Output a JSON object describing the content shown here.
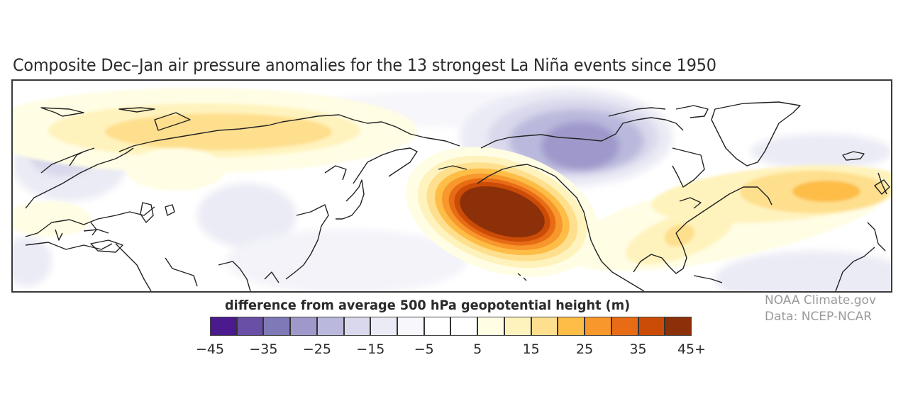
{
  "title": "Composite Dec–Jan air pressure anomalies for the 13 strongest La Niña events since 1950",
  "legend": {
    "title": "difference from average 500 hPa geopotential height (m)",
    "bins": [
      {
        "min": -45,
        "max": -40,
        "color": "#4a1a8e"
      },
      {
        "min": -40,
        "max": -35,
        "color": "#6a4fa6"
      },
      {
        "min": -35,
        "max": -30,
        "color": "#7f79b7"
      },
      {
        "min": -30,
        "max": -25,
        "color": "#9e98cb"
      },
      {
        "min": -25,
        "max": -20,
        "color": "#bab9dd"
      },
      {
        "min": -20,
        "max": -15,
        "color": "#d9d8ec"
      },
      {
        "min": -15,
        "max": -10,
        "color": "#ebebf5"
      },
      {
        "min": -10,
        "max": -5,
        "color": "#f8f8fc"
      },
      {
        "min": -5,
        "max": 0,
        "color": "#ffffff"
      },
      {
        "min": 0,
        "max": 5,
        "color": "#ffffff"
      },
      {
        "min": 5,
        "max": 10,
        "color": "#fffde3"
      },
      {
        "min": 10,
        "max": 15,
        "color": "#fff3bd"
      },
      {
        "min": 15,
        "max": 20,
        "color": "#fedf8e"
      },
      {
        "min": 20,
        "max": 25,
        "color": "#fdbd47"
      },
      {
        "min": 25,
        "max": 30,
        "color": "#f8972b"
      },
      {
        "min": 30,
        "max": 35,
        "color": "#e86b16"
      },
      {
        "min": 35,
        "max": 40,
        "color": "#cb4c07"
      },
      {
        "min": 40,
        "max": 45,
        "color": "#8c300a"
      }
    ],
    "tick_labels": [
      "−45",
      "−35",
      "−25",
      "−15",
      "−5",
      "5",
      "15",
      "25",
      "35",
      "45+"
    ]
  },
  "credits": {
    "line1": "NOAA Climate.gov",
    "line2": "Data: NCEP-NCAR"
  },
  "map": {
    "anomalies": [
      {
        "name": "north-pacific-high",
        "peak_m": 45
      },
      {
        "name": "north-canada-low",
        "peak_m": -25
      },
      {
        "name": "north-atlantic-high",
        "peak_m": 20
      },
      {
        "name": "southeast-us-high",
        "peak_m": 15
      },
      {
        "name": "siberia-high",
        "peak_m": 15
      }
    ]
  }
}
